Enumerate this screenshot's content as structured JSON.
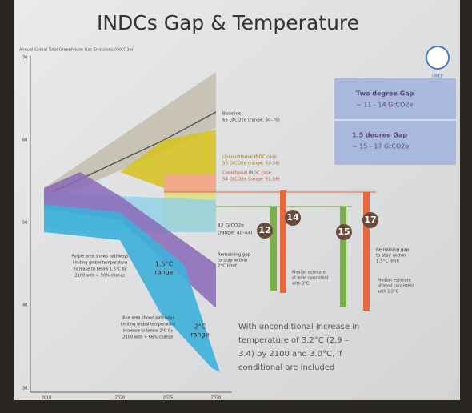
{
  "slide": {
    "title": "INDCs Gap & Temperature",
    "axis_title": "Annual Global Total Greenhouse Gas Emissions (GtCO2e)",
    "yticks": [
      "70",
      "60",
      "50",
      "40",
      "30"
    ],
    "xticks": [
      "2010",
      "2020",
      "2025",
      "2030"
    ],
    "logo": "UNEP",
    "gap_box": {
      "two_degree_title": "Two degree Gap",
      "two_degree_value": "~ 11 - 14 GtCO2e",
      "one_five_title": "1.5 degree Gap",
      "one_five_value": "~ 15 - 17 GtCO2e"
    },
    "cases": {
      "baseline": [
        "Baseline",
        "65 GtCO2e (range: 60-70)"
      ],
      "unconditional": [
        "Unconditional INDC case",
        "56 GtCO2e (range: 53-58)"
      ],
      "conditional": [
        "Conditional INDC case",
        "54 GtCO2e (range: 51-56)"
      ],
      "target": [
        "42 GtCO2e",
        "(range: 40-44)"
      ]
    },
    "badges": [
      "12",
      "14",
      "15",
      "17"
    ],
    "gap_notes": {
      "two_degree": [
        "Remaining gap",
        "to stay within",
        "2°C limit"
      ],
      "one_five": [
        "Remaining gap",
        "to stay within",
        "1.5°C limit"
      ]
    },
    "median_notes": {
      "two_degree": [
        "Median estimate",
        "of level consistent",
        "with 2°C"
      ],
      "one_five": [
        "Median estimate",
        "of level consistent",
        "with 1.5°C"
      ]
    },
    "purple_note": [
      "Purple area shows pathways",
      "limiting global temperature",
      "increase to below 1.5°C by",
      "2100 with > 50% chance"
    ],
    "purple_range": [
      "1.5°C",
      "range"
    ],
    "blue_note": [
      "Blue area shows pathways",
      "limiting global temperature",
      "increase to below 2°C by",
      "2100 with > 66% chance"
    ],
    "blue_range": [
      "2°C",
      "range"
    ],
    "temperature_note": [
      "With unconditional increase in",
      "temperature of 3.2°C (2.9 –",
      "3.4) by 2100 and 3.0°C, if",
      "conditional are included"
    ]
  }
}
